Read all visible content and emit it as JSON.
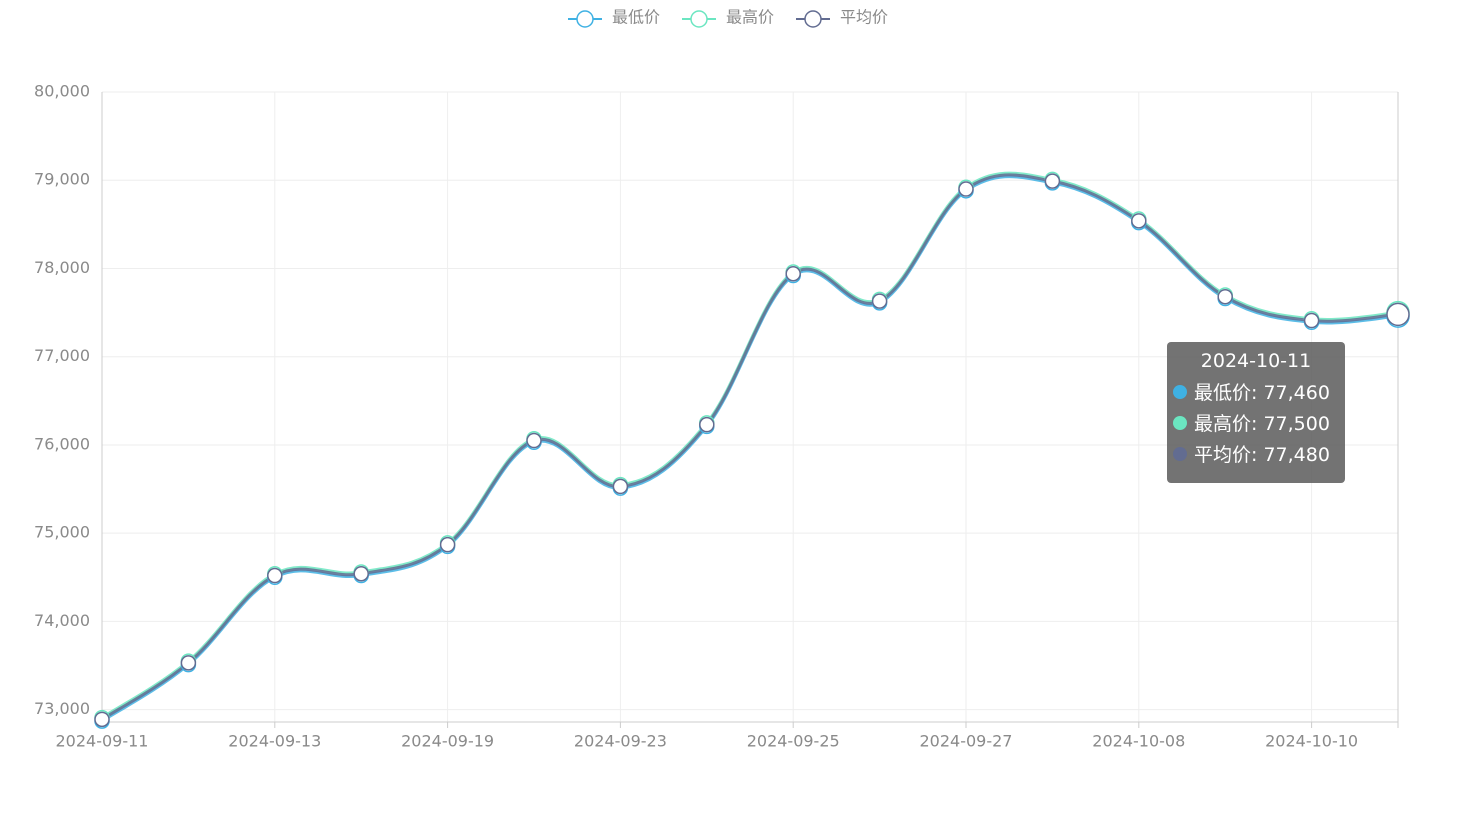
{
  "chart_data": {
    "type": "line",
    "categories": [
      "2024-09-11",
      null,
      "2024-09-13",
      null,
      "2024-09-19",
      null,
      "2024-09-23",
      null,
      "2024-09-25",
      null,
      "2024-09-27",
      null,
      "2024-10-08",
      null,
      "2024-10-10",
      "2024-10-11"
    ],
    "series": [
      {
        "name": "最低价",
        "color": "#3fb1e3",
        "values": [
          72870,
          73510,
          74500,
          74520,
          74850,
          76030,
          75510,
          76210,
          77920,
          77610,
          78880,
          78970,
          78520,
          77660,
          77390,
          77460
        ]
      },
      {
        "name": "最高价",
        "color": "#6be6c1",
        "values": [
          72910,
          73550,
          74540,
          74560,
          74890,
          76070,
          75550,
          76250,
          77960,
          77650,
          78920,
          79010,
          78560,
          77700,
          77430,
          77500
        ]
      },
      {
        "name": "平均价",
        "color": "#626c91",
        "values": [
          72890,
          73530,
          74520,
          74540,
          74870,
          76050,
          75530,
          76230,
          77940,
          77630,
          78900,
          78990,
          78540,
          77680,
          77410,
          77480
        ]
      }
    ],
    "ylim": [
      72860,
      80000
    ],
    "yticks": [
      {
        "value": 73000,
        "label": "73,000"
      },
      {
        "value": 74000,
        "label": "74,000"
      },
      {
        "value": 75000,
        "label": "75,000"
      },
      {
        "value": 76000,
        "label": "76,000"
      },
      {
        "value": 77000,
        "label": "77,000"
      },
      {
        "value": 78000,
        "label": "78,000"
      },
      {
        "value": 79000,
        "label": "79,000"
      },
      {
        "value": 80000,
        "label": "80,000"
      }
    ],
    "grid": true,
    "legend": "top",
    "smooth": true,
    "tooltip": {
      "rows": [
        "最低价: 77,460",
        "最高价: 77,500",
        "平均价: 77,480"
      ]
    }
  }
}
